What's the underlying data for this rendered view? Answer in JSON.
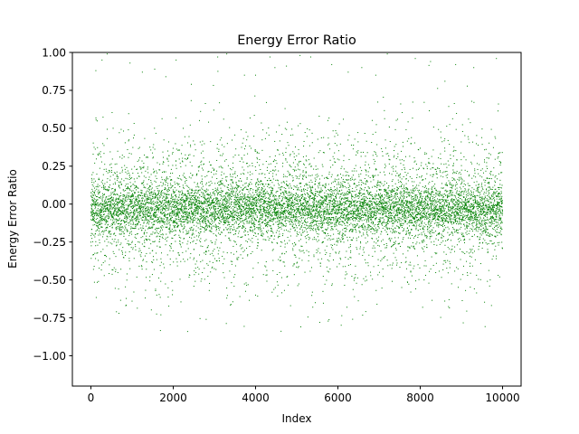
{
  "chart_data": {
    "type": "scatter",
    "title": "Energy Error Ratio",
    "xlabel": "Index",
    "ylabel": "Energy Error Ratio",
    "xlim": [
      -450,
      10450
    ],
    "ylim": [
      -1.2,
      1.0
    ],
    "x_ticks": [
      0,
      2000,
      4000,
      6000,
      8000,
      10000
    ],
    "x_tick_labels": [
      "0",
      "2000",
      "4000",
      "6000",
      "8000",
      "10000"
    ],
    "y_ticks": [
      -1.0,
      -0.75,
      -0.5,
      -0.25,
      0.0,
      0.25,
      0.5,
      0.75,
      1.0
    ],
    "y_tick_labels": [
      "−1.00",
      "−0.75",
      "−0.50",
      "−0.25",
      "0.00",
      "0.25",
      "0.50",
      "0.75",
      "1.00"
    ],
    "grid": false,
    "series": [
      {
        "color": "#008000",
        "marker_size": 1,
        "x_range": [
          0,
          10000
        ],
        "point_count": 10000,
        "distribution": {
          "center": -0.03,
          "core_spread": 0.08,
          "outer_spread": 0.25,
          "min": -0.84,
          "max": 1.0
        },
        "points": [
          [
            120,
            0.88
          ],
          [
            270,
            0.95
          ],
          [
            395,
            0.99
          ],
          [
            540,
            0.5
          ],
          [
            620,
            -0.71
          ],
          [
            680,
            -0.72
          ],
          [
            950,
            0.93
          ],
          [
            1250,
            0.87
          ],
          [
            1550,
            0.89
          ],
          [
            1700,
            -0.73
          ],
          [
            1820,
            0.84
          ],
          [
            2070,
            0.95
          ],
          [
            2350,
            -0.84
          ],
          [
            2440,
            0.79
          ],
          [
            2800,
            -0.76
          ],
          [
            3080,
            0.97
          ],
          [
            3300,
            0.99
          ],
          [
            3730,
            0.85
          ],
          [
            3770,
            -0.52
          ],
          [
            4000,
            0.85
          ],
          [
            4350,
            0.97
          ],
          [
            4470,
            0.9
          ],
          [
            4750,
            0.91
          ],
          [
            5080,
            0.98
          ],
          [
            5340,
            0.97
          ],
          [
            5450,
            -0.65
          ],
          [
            5560,
            -0.78
          ],
          [
            5850,
            0.92
          ],
          [
            6250,
            0.87
          ],
          [
            6580,
            0.9
          ],
          [
            6920,
            0.85
          ],
          [
            7200,
            0.99
          ],
          [
            7550,
            -0.55
          ],
          [
            7770,
            -0.58
          ],
          [
            7880,
            0.96
          ],
          [
            8250,
            0.94
          ],
          [
            8600,
            0.81
          ],
          [
            8860,
            0.92
          ],
          [
            9300,
            0.9
          ],
          [
            9850,
            0.96
          ],
          [
            9900,
            0.66
          ],
          [
            9700,
            -0.5
          ],
          [
            9100,
            -0.57
          ],
          [
            8700,
            -0.63
          ],
          [
            6950,
            -0.66
          ],
          [
            6220,
            -0.68
          ],
          [
            4850,
            -0.67
          ],
          [
            4000,
            -0.6
          ],
          [
            3300,
            -0.62
          ],
          [
            1000,
            -0.64
          ],
          [
            1600,
            -0.6
          ]
        ]
      }
    ]
  }
}
